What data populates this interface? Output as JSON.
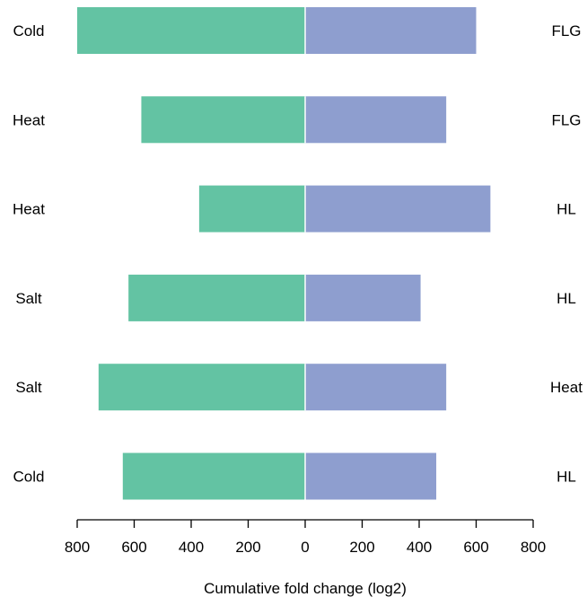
{
  "colors": {
    "left": "#63c3a3",
    "right": "#8e9ecf",
    "axis": "#000000"
  },
  "chart_data": {
    "type": "bar",
    "orientation": "horizontal-diverging",
    "xlabel": "Cumulative fold change (log2)",
    "xlim": [
      -800,
      800
    ],
    "x_ticks": [
      -800,
      -600,
      -400,
      -200,
      0,
      200,
      400,
      600,
      800
    ],
    "x_tick_labels": [
      "800",
      "600",
      "400",
      "200",
      "0",
      "200",
      "400",
      "600",
      "800"
    ],
    "grid": false,
    "rows": [
      {
        "left_label": "Cold",
        "right_label": "FLG",
        "left_value": 800,
        "right_value": 600
      },
      {
        "left_label": "Heat",
        "right_label": "FLG",
        "left_value": 575,
        "right_value": 495
      },
      {
        "left_label": "Heat",
        "right_label": "HL",
        "left_value": 372,
        "right_value": 650
      },
      {
        "left_label": "Salt",
        "right_label": "HL",
        "left_value": 620,
        "right_value": 405
      },
      {
        "left_label": "Salt",
        "right_label": "Heat",
        "left_value": 725,
        "right_value": 495
      },
      {
        "left_label": "Cold",
        "right_label": "HL",
        "left_value": 640,
        "right_value": 460
      }
    ]
  }
}
